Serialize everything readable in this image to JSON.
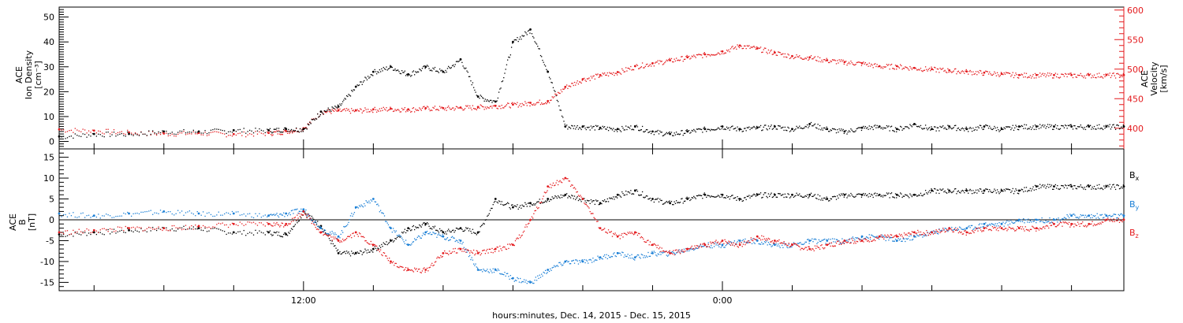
{
  "xlabel": "hours:minutes, Dec. 14, 2015 - Dec. 15, 2015",
  "colors": {
    "black": "#000000",
    "red": "#e4191c",
    "blue": "#1a7fd6"
  },
  "chart_data": [
    {
      "type": "scatter",
      "panel": "top",
      "ylabel_left": [
        "ACE",
        "Ion Density",
        "[cm⁻³]"
      ],
      "ylabel_right": [
        "ACE",
        "Velocity",
        "[km/s]"
      ],
      "x_unit": "hours since 00:00 Dec. 14, 2015",
      "xlim": [
        5,
        35.5
      ],
      "x_ticks": [
        {
          "x": 12,
          "label": "12:00"
        },
        {
          "x": 24,
          "label": "0:00"
        }
      ],
      "ylim_left": [
        -3,
        54
      ],
      "yticks_left": [
        0,
        10,
        20,
        30,
        40,
        50
      ],
      "ylim_right": [
        365,
        605
      ],
      "yticks_right": [
        400,
        450,
        500,
        550,
        600
      ],
      "series": [
        {
          "axis": "left",
          "color": "#000000",
          "x": [
            5,
            6,
            7,
            8,
            9,
            10,
            11,
            11.5,
            12,
            12.5,
            13,
            13.5,
            14,
            14.5,
            15,
            15.5,
            16,
            16.5,
            17,
            17.5,
            18,
            18.5,
            19,
            19.5,
            20,
            20.5,
            21,
            21.5,
            22,
            22.5,
            23,
            23.5,
            24,
            24.5,
            25,
            25.5,
            26,
            26.5,
            27,
            27.5,
            28,
            28.5,
            29,
            29.5,
            30,
            30.5,
            31,
            31.5,
            32,
            32.5,
            33,
            33.5,
            34,
            34.5,
            35,
            35.5
          ],
          "values": [
            2,
            3,
            3,
            4,
            4,
            4.5,
            4.5,
            5,
            5,
            12,
            14,
            22,
            28,
            30,
            27,
            30,
            28,
            33,
            18,
            16,
            40,
            45,
            28,
            6,
            6,
            5.5,
            5,
            6,
            4,
            3,
            4,
            5,
            6,
            5,
            5.5,
            6,
            5,
            7,
            5,
            4,
            5.5,
            6,
            5,
            7,
            5,
            6,
            5,
            6,
            5,
            6,
            6,
            6,
            6,
            6,
            6,
            6
          ]
        },
        {
          "axis": "right",
          "color": "#e4191c",
          "x": [
            5,
            6,
            7,
            8,
            9,
            10,
            11,
            11.5,
            12,
            12.5,
            13,
            13.5,
            14,
            14.5,
            15,
            15.5,
            16,
            16.5,
            17,
            17.5,
            18,
            18.5,
            19,
            19.5,
            20,
            20.5,
            21,
            21.5,
            22,
            22.5,
            23,
            23.5,
            24,
            24.5,
            25,
            25.5,
            26,
            26.5,
            27,
            27.5,
            28,
            28.5,
            29,
            29.5,
            30,
            30.5,
            31,
            31.5,
            32,
            32.5,
            33,
            33.5,
            34,
            34.5,
            35,
            35.5
          ],
          "values": [
            398,
            396,
            393,
            391,
            392,
            390,
            392,
            395,
            400,
            428,
            430,
            430,
            432,
            433,
            432,
            434,
            434,
            435,
            436,
            438,
            440,
            443,
            446,
            470,
            483,
            490,
            495,
            505,
            510,
            515,
            520,
            525,
            530,
            540,
            535,
            528,
            522,
            520,
            515,
            512,
            510,
            505,
            505,
            502,
            500,
            498,
            496,
            494,
            492,
            490,
            490,
            490,
            490,
            490,
            490,
            490
          ]
        }
      ]
    },
    {
      "type": "scatter",
      "panel": "bottom",
      "ylabel_left": [
        "ACE",
        "B",
        "[nT]"
      ],
      "x_unit": "hours since 00:00 Dec. 14, 2015",
      "xlim": [
        5,
        35.5
      ],
      "ylim": [
        -17,
        17
      ],
      "yticks": [
        -15,
        -10,
        -5,
        0,
        5,
        10,
        15
      ],
      "zero_line": true,
      "legend": "right",
      "series": [
        {
          "name": "Bx",
          "color": "#000000",
          "x": [
            5,
            6,
            7,
            8,
            9,
            10,
            11,
            11.5,
            12,
            12.5,
            13,
            13.5,
            14,
            14.5,
            15,
            15.5,
            16,
            16.5,
            17,
            17.5,
            18,
            18.5,
            19,
            19.5,
            20,
            20.5,
            21,
            21.5,
            22,
            22.5,
            23,
            23.5,
            24,
            24.5,
            25,
            25.5,
            26,
            26.5,
            27,
            27.5,
            28,
            28.5,
            29,
            29.5,
            30,
            30.5,
            31,
            31.5,
            32,
            32.5,
            33,
            33.5,
            34,
            34.5,
            35,
            35.5
          ],
          "values": [
            -3.5,
            -3,
            -2.5,
            -2,
            -2,
            -3,
            -3,
            -3.5,
            2,
            -1.5,
            -8,
            -8,
            -7,
            -5,
            -2,
            -1,
            -3,
            -2,
            -3,
            5,
            3,
            4,
            5,
            6,
            5,
            4,
            6,
            7,
            5,
            4,
            5,
            6,
            6,
            5,
            6,
            6,
            6,
            6,
            5,
            6,
            6,
            6,
            6,
            6,
            7,
            7,
            7,
            7,
            7,
            7,
            8,
            8,
            8,
            8,
            8,
            8
          ]
        },
        {
          "name": "By",
          "color": "#1a7fd6",
          "x": [
            5,
            6,
            7,
            8,
            9,
            10,
            11,
            11.5,
            12,
            12.5,
            13,
            13.5,
            14,
            14.5,
            15,
            15.5,
            16,
            16.5,
            17,
            17.5,
            18,
            18.5,
            19,
            19.5,
            20,
            20.5,
            21,
            21.5,
            22,
            22.5,
            23,
            23.5,
            24,
            24.5,
            25,
            25.5,
            26,
            26.5,
            27,
            27.5,
            28,
            28.5,
            29,
            29.5,
            30,
            30.5,
            31,
            31.5,
            32,
            32.5,
            33,
            33.5,
            34,
            34.5,
            35,
            35.5
          ],
          "values": [
            1.5,
            1,
            1.5,
            2,
            1.5,
            1.5,
            1,
            1.5,
            2.5,
            -2,
            -4,
            3,
            5,
            -2,
            -6,
            -3,
            -4,
            -5,
            -12,
            -12,
            -14,
            -15,
            -12,
            -10,
            -10,
            -9,
            -8,
            -9,
            -8,
            -8,
            -7,
            -6,
            -6,
            -5,
            -5,
            -6,
            -6,
            -5,
            -5,
            -5,
            -4,
            -4,
            -5,
            -4,
            -3,
            -2,
            -2,
            -1,
            -1,
            0,
            0,
            0,
            1,
            1,
            1,
            1
          ]
        },
        {
          "name": "Bz",
          "color": "#e4191c",
          "x": [
            5,
            6,
            7,
            8,
            9,
            10,
            11,
            11.5,
            12,
            12.5,
            13,
            13.5,
            14,
            14.5,
            15,
            15.5,
            16,
            16.5,
            17,
            17.5,
            18,
            18.5,
            19,
            19.5,
            20,
            20.5,
            21,
            21.5,
            22,
            22.5,
            23,
            23.5,
            24,
            24.5,
            25,
            25.5,
            26,
            26.5,
            27,
            27.5,
            28,
            28.5,
            29,
            29.5,
            30,
            30.5,
            31,
            31.5,
            32,
            32.5,
            33,
            33.5,
            34,
            34.5,
            35,
            35.5
          ],
          "values": [
            -3,
            -2.5,
            -2,
            -2,
            -1.5,
            -1,
            -1,
            -1,
            2,
            -3,
            -5,
            -3,
            -6,
            -10,
            -12,
            -12,
            -8,
            -7,
            -8,
            -7,
            -6,
            0,
            8,
            10,
            5,
            -2,
            -4,
            -3,
            -6,
            -8,
            -7,
            -6,
            -5,
            -6,
            -4,
            -5,
            -6,
            -7,
            -6,
            -5,
            -5,
            -4,
            -4,
            -3,
            -3,
            -2,
            -3,
            -2,
            -2,
            -2,
            -2,
            -1,
            -1,
            -1,
            0,
            0
          ]
        }
      ]
    }
  ]
}
